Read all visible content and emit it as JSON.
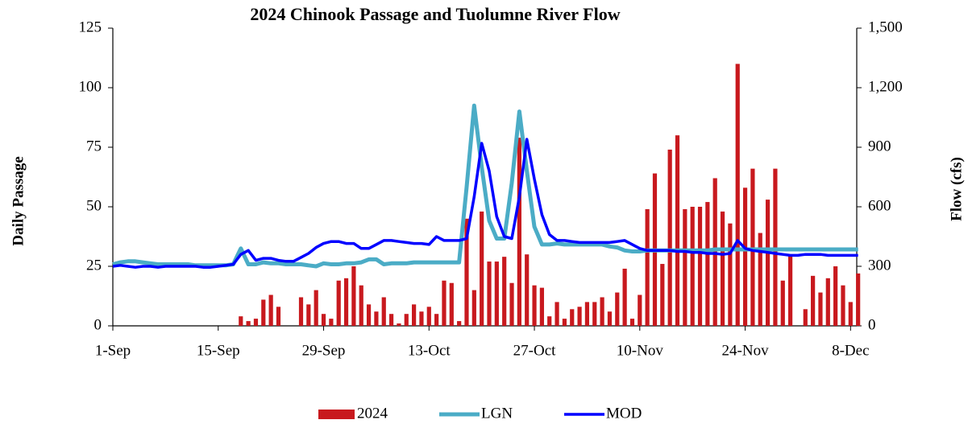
{
  "chart_data": {
    "type": "bar",
    "title": "2024 Chinook Passage and Tuolumne River Flow",
    "y_label": "Daily Passage",
    "y2_label": "Flow (cfs)",
    "categories": [
      "1-Sep",
      null,
      null,
      null,
      null,
      null,
      null,
      null,
      null,
      null,
      null,
      null,
      null,
      null,
      "15-Sep",
      null,
      null,
      null,
      null,
      null,
      null,
      null,
      null,
      null,
      null,
      null,
      null,
      null,
      "29-Sep",
      null,
      null,
      null,
      null,
      null,
      null,
      null,
      null,
      null,
      null,
      null,
      null,
      null,
      "13-Oct",
      null,
      null,
      null,
      null,
      null,
      null,
      null,
      null,
      null,
      null,
      null,
      null,
      null,
      "27-Oct",
      null,
      null,
      null,
      null,
      null,
      null,
      null,
      null,
      null,
      null,
      null,
      null,
      null,
      "10-Nov",
      null,
      null,
      null,
      null,
      null,
      null,
      null,
      null,
      null,
      null,
      null,
      null,
      null,
      "24-Nov",
      null,
      null,
      null,
      null,
      null,
      null,
      null,
      null,
      null,
      null,
      null,
      null,
      null,
      "8-Dec",
      null
    ],
    "ylim": [
      0,
      125
    ],
    "yticks": [
      0,
      25,
      50,
      75,
      100,
      125
    ],
    "y2lim": [
      0,
      1500
    ],
    "y2ticks": [
      0,
      300,
      600,
      900,
      {
        "value": 1200,
        "label": "1,200"
      },
      {
        "value": 1500,
        "label": "1,500"
      }
    ],
    "legend": "bottom",
    "series": [
      {
        "name": "2024",
        "type": "bar",
        "color": "#c8191e",
        "values": [
          0,
          0,
          0,
          0,
          0,
          0,
          0,
          0,
          0,
          0,
          0,
          0,
          0,
          0,
          0,
          0,
          0,
          4,
          2,
          3,
          11,
          13,
          8,
          0,
          0,
          12,
          9,
          15,
          5,
          3,
          19,
          20,
          25,
          17,
          9,
          6,
          12,
          5,
          1,
          5,
          9,
          6,
          8,
          5,
          19,
          18,
          2,
          45,
          15,
          48,
          27,
          27,
          29,
          18,
          79,
          30,
          17,
          16,
          4,
          10,
          3,
          7,
          8,
          10,
          10,
          12,
          6,
          14,
          24,
          3,
          13,
          49,
          64,
          26,
          74,
          80,
          49,
          50,
          50,
          52,
          62,
          48,
          43,
          110,
          58,
          66,
          39,
          53,
          66,
          19,
          30,
          0,
          7,
          21,
          14,
          20,
          25,
          17,
          10,
          22
        ]
      },
      {
        "name": "LGN",
        "type": "line",
        "axis": "y2",
        "color": "#4bacc6",
        "values": [
          310,
          320,
          325,
          325,
          320,
          315,
          310,
          310,
          310,
          310,
          310,
          305,
          305,
          305,
          305,
          305,
          310,
          390,
          310,
          310,
          320,
          315,
          315,
          310,
          310,
          310,
          305,
          300,
          315,
          310,
          310,
          315,
          315,
          320,
          335,
          335,
          310,
          315,
          315,
          315,
          320,
          320,
          320,
          320,
          320,
          320,
          320,
          700,
          1110,
          800,
          530,
          440,
          440,
          720,
          1080,
          780,
          500,
          410,
          410,
          415,
          410,
          410,
          410,
          410,
          410,
          410,
          400,
          395,
          380,
          375,
          375,
          380,
          380,
          380,
          380,
          380,
          380,
          380,
          380,
          380,
          385,
          385,
          385,
          385,
          385,
          385,
          385,
          385,
          385,
          385,
          385,
          385,
          385,
          385,
          385,
          385,
          385,
          385,
          385,
          385
        ]
      },
      {
        "name": "MOD",
        "type": "line",
        "axis": "y2",
        "color": "#0000ff",
        "values": [
          300,
          305,
          300,
          295,
          300,
          300,
          295,
          300,
          300,
          300,
          300,
          300,
          295,
          295,
          300,
          305,
          310,
          360,
          380,
          330,
          340,
          340,
          330,
          325,
          325,
          345,
          365,
          395,
          415,
          425,
          425,
          415,
          415,
          390,
          390,
          410,
          430,
          430,
          425,
          420,
          415,
          415,
          410,
          450,
          430,
          430,
          430,
          440,
          650,
          920,
          780,
          550,
          450,
          440,
          650,
          940,
          740,
          560,
          460,
          430,
          430,
          425,
          420,
          420,
          420,
          420,
          420,
          425,
          430,
          410,
          390,
          380,
          380,
          380,
          380,
          375,
          375,
          370,
          370,
          365,
          365,
          360,
          365,
          430,
          390,
          380,
          375,
          370,
          365,
          360,
          355,
          355,
          360,
          360,
          360,
          355,
          355,
          355,
          355,
          355
        ]
      }
    ]
  }
}
